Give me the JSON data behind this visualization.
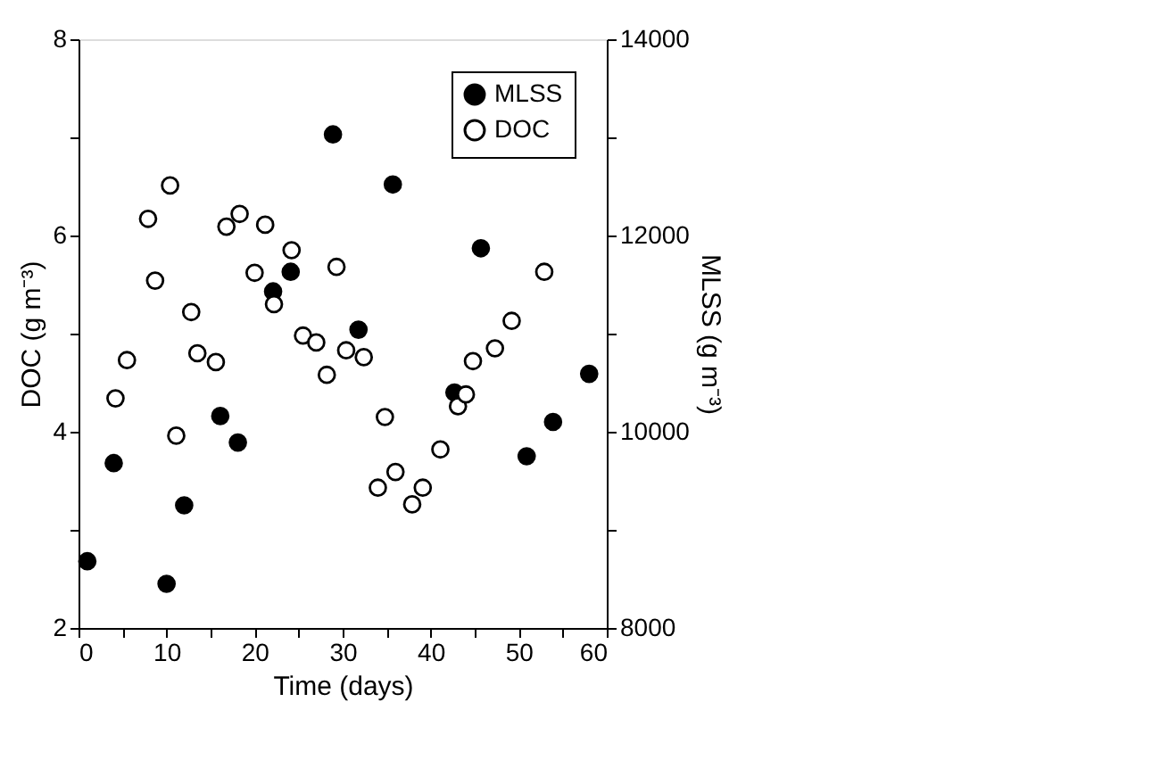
{
  "chart_data": {
    "type": "scatter",
    "xlabel": "Time (days)",
    "ylabel": "DOC (g m⁻³)",
    "y2label": "MLSS (g m⁻³)",
    "xlim": [
      0,
      60
    ],
    "xticks": [
      0,
      {
        "value": 5,
        "label": null
      },
      10,
      {
        "value": 15,
        "label": null
      },
      20,
      {
        "value": 25,
        "label": null
      },
      30,
      {
        "value": 35,
        "label": null
      },
      40,
      {
        "value": 45,
        "label": null
      },
      50,
      {
        "value": 55,
        "label": null
      },
      60
    ],
    "ylim": [
      2,
      8
    ],
    "yticks": [
      2,
      {
        "value": 3,
        "label": null
      },
      4,
      {
        "value": 5,
        "label": null
      },
      6,
      {
        "value": 7,
        "label": null
      },
      8
    ],
    "y2lim": [
      8000,
      14000
    ],
    "y2ticks": [
      8000,
      {
        "value": 9000,
        "label": null
      },
      10000,
      {
        "value": 11000,
        "label": null
      },
      12000,
      {
        "value": 13000,
        "label": null
      },
      14000
    ],
    "legend": "top right",
    "grid": false,
    "marker": "circle",
    "series": [
      {
        "name": "MLSS",
        "color": "#000000",
        "axis": "y2",
        "x": [
          1.0,
          4.0,
          10.0,
          12.0,
          16.1,
          18.1,
          22.1,
          24.1,
          28.9,
          31.8,
          35.7,
          42.7,
          45.7,
          50.9,
          53.9,
          58.0
        ],
        "values": [
          8680,
          9680,
          8450,
          9250,
          10160,
          9890,
          11430,
          11630,
          13030,
          11040,
          12520,
          10400,
          11870,
          9750,
          10100,
          10590
        ]
      },
      {
        "name": "DOC",
        "color": "#ffffff",
        "axis": "y",
        "x": [
          4.2,
          5.5,
          7.9,
          8.7,
          10.4,
          11.1,
          12.8,
          13.5,
          15.6,
          16.8,
          18.3,
          20.0,
          21.2,
          22.2,
          24.2,
          25.5,
          27.0,
          28.2,
          29.3,
          30.4,
          32.4,
          34.0,
          34.8,
          36.0,
          37.9,
          39.1,
          41.1,
          43.1,
          44.0,
          44.8,
          47.3,
          49.2,
          52.9
        ],
        "values": [
          4.34,
          4.73,
          6.17,
          5.54,
          6.51,
          3.96,
          5.22,
          4.8,
          4.71,
          6.09,
          6.22,
          5.62,
          6.11,
          5.3,
          5.85,
          4.98,
          4.91,
          4.58,
          5.68,
          4.83,
          4.76,
          3.43,
          4.15,
          3.59,
          3.26,
          3.43,
          3.82,
          4.26,
          4.38,
          4.72,
          4.85,
          5.13,
          5.63
        ]
      }
    ]
  }
}
